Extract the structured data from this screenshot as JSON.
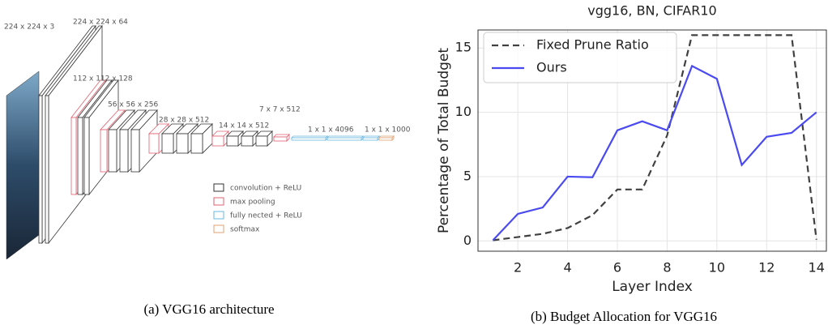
{
  "figure_a": {
    "layer_labels": [
      "224 x 224 x 3",
      "224 x 224 x 64",
      "112 x 112 x 128",
      "56 x 56 x 256",
      "28 x 28 x 512",
      "14 x 14 x 512",
      "7 x 7 x 512",
      "1 x 1 x 4096",
      "1 x 1 x 1000"
    ],
    "legend": [
      "convolution + ReLU",
      "max pooling",
      "fully nected + ReLU",
      "softmax"
    ],
    "caption": "(a) VGG16 architecture"
  },
  "chart_data": {
    "type": "line",
    "title": "vgg16, BN, CIFAR10",
    "x_label": "Layer Index",
    "y_label": "Percentage of Total Budget",
    "x": [
      1,
      2,
      3,
      4,
      5,
      6,
      7,
      8,
      9,
      10,
      11,
      12,
      13,
      14
    ],
    "xlim": [
      0.4,
      14.4
    ],
    "xticks": [
      2,
      4,
      6,
      8,
      10,
      12,
      14
    ],
    "ylim": [
      -0.8,
      16.4
    ],
    "yticks": [
      0,
      5,
      10,
      15
    ],
    "grid": true,
    "legend_position": "upper left",
    "series": [
      {
        "name": "Fixed Prune Ratio",
        "color": "#404040",
        "line_style": "dashed",
        "values": [
          0.05,
          0.3,
          0.55,
          1.0,
          2.0,
          4.0,
          4.0,
          8.2,
          16,
          16,
          16,
          16,
          16,
          0.1
        ]
      },
      {
        "name": "Ours",
        "color": "#4a4af0",
        "line_style": "solid",
        "values": [
          0.05,
          2.1,
          2.6,
          5.0,
          4.95,
          8.6,
          9.3,
          8.6,
          13.6,
          12.6,
          5.9,
          8.1,
          8.4,
          10.0
        ]
      }
    ],
    "caption": "(b) Budget Allocation for VGG16"
  }
}
